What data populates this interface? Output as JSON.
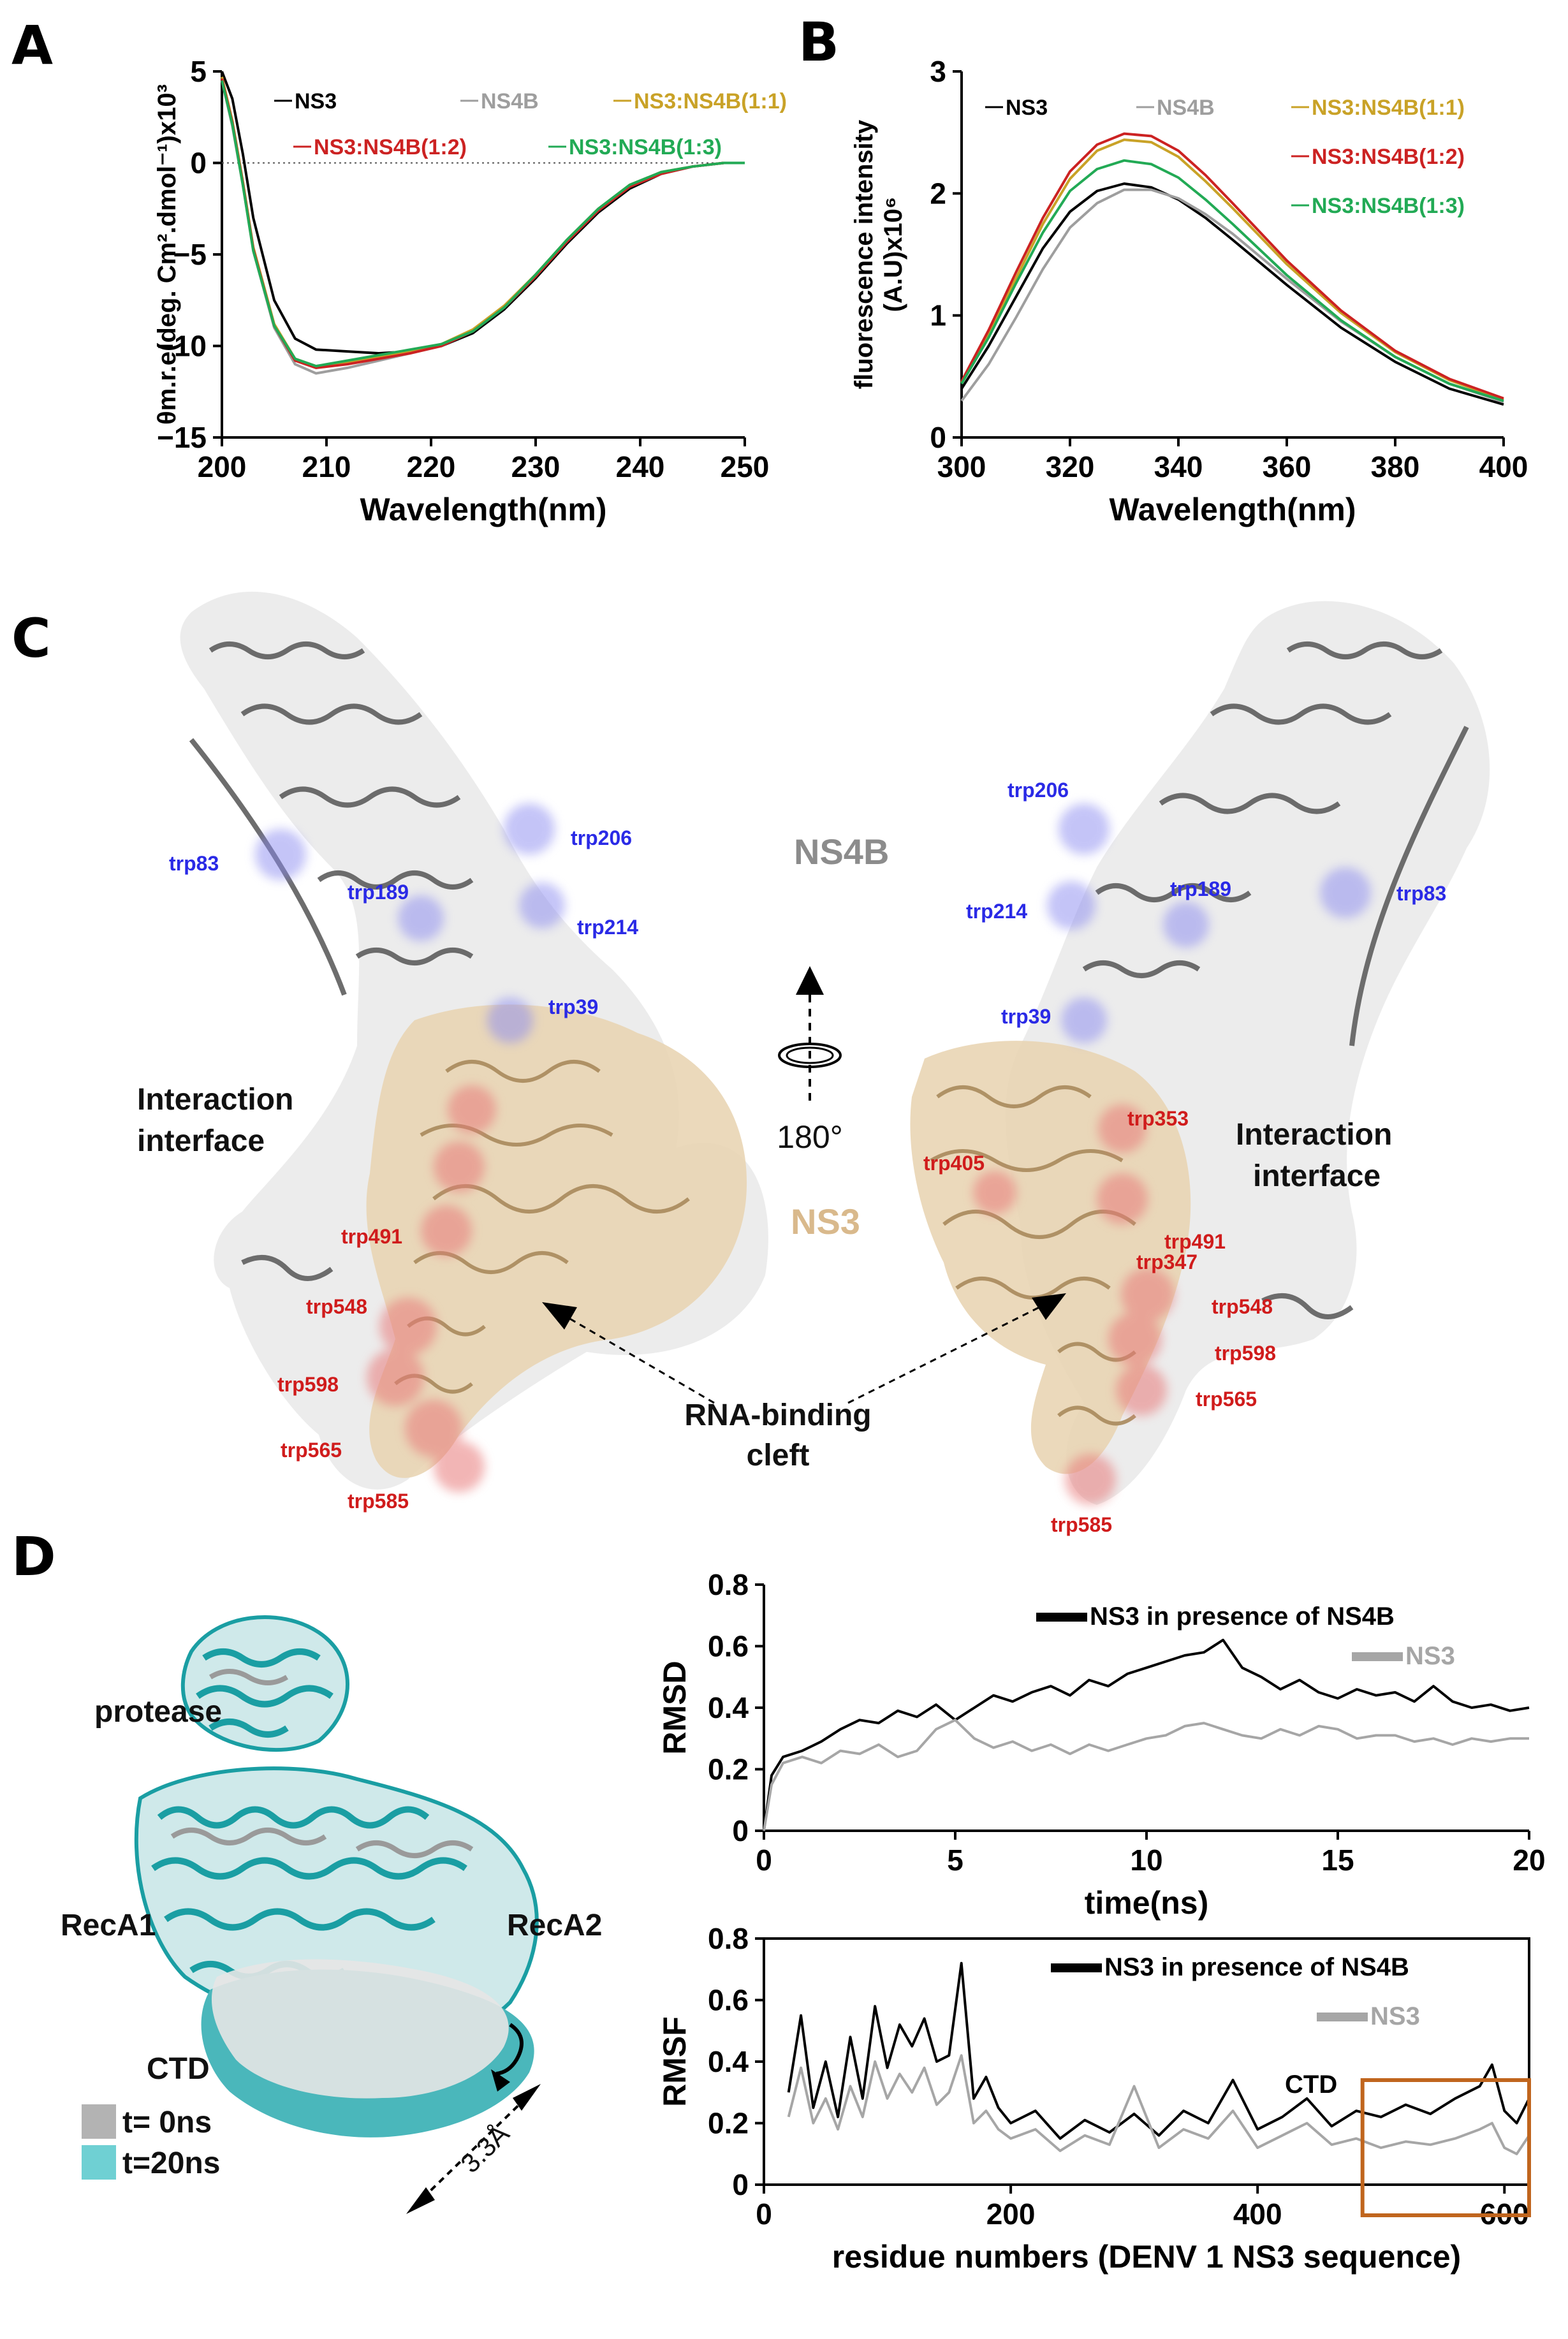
{
  "panels": {
    "A": {
      "letter": "A"
    },
    "B": {
      "letter": "B"
    },
    "C": {
      "letter": "C",
      "ns4b_label": "NS4B",
      "ns3_label": "NS3",
      "interface_left": [
        "Interaction",
        "interface"
      ],
      "interface_right": [
        "Interaction",
        "interface"
      ],
      "rotation_label": "180°",
      "cleft_label": [
        "RNA-binding",
        "cleft"
      ],
      "trp_left_blue": [
        "trp83",
        "trp189",
        "trp206",
        "trp214",
        "trp39"
      ],
      "trp_left_red": [
        "trp491",
        "trp548",
        "trp598",
        "trp565",
        "trp585"
      ],
      "trp_right_blue": [
        "trp206",
        "trp214",
        "trp189",
        "trp83",
        "trp39"
      ],
      "trp_right_red": [
        "trp353",
        "trp405",
        "trp491",
        "trp347",
        "trp548",
        "trp598",
        "trp565",
        "trp585"
      ]
    },
    "D": {
      "letter": "D",
      "labels": {
        "protease": "protease",
        "reca1": "RecA1",
        "reca2": "RecA2",
        "ctd": "CTD",
        "dist": "3.3Å"
      },
      "legend": [
        {
          "label": "t= 0ns",
          "color": "#b3b3b3"
        },
        {
          "label": "t=20ns",
          "color": "#6fd0d3"
        }
      ]
    }
  },
  "colors": {
    "ns3": "#000000",
    "ns4b": "#9e9e9e",
    "ratio11": "#c9a227",
    "ratio12": "#cc2222",
    "ratio13": "#22aa55",
    "trp_blue": "#2a2ae6",
    "trp_red": "#d01c1c",
    "ns3_struct": "#d9b98c",
    "ns4b_struct": "#8c8c8c",
    "teal": "#1a9ea3",
    "ctd_box": "#c0651d"
  },
  "chart_data": [
    {
      "id": "A",
      "type": "line",
      "xlabel": "Wavelength(nm)",
      "ylabel": "θm.r.e(deg. Cm².dmol⁻¹)x10³",
      "xlim": [
        200,
        250
      ],
      "ylim": [
        -15,
        5
      ],
      "xticks": [
        200,
        210,
        220,
        230,
        240,
        250
      ],
      "yticks": [
        5,
        0,
        -5,
        -10,
        -15
      ],
      "ytick_labels": [
        "5",
        "0",
        "−5",
        "−10",
        "−15"
      ],
      "legend": [
        "NS3",
        "NS4B",
        "NS3:NS4B(1:1)",
        "NS3:NS4B(1:2)",
        "NS3:NS4B(1:3)"
      ],
      "x": [
        200,
        201,
        202,
        203,
        205,
        207,
        209,
        212,
        215,
        218,
        221,
        224,
        227,
        230,
        233,
        236,
        239,
        242,
        245,
        248,
        250
      ],
      "series": [
        {
          "name": "NS3",
          "color": "#000000",
          "values": [
            5.0,
            3.5,
            0.5,
            -3.0,
            -7.5,
            -9.6,
            -10.2,
            -10.3,
            -10.4,
            -10.3,
            -10.0,
            -9.3,
            -8.0,
            -6.3,
            -4.4,
            -2.7,
            -1.4,
            -0.6,
            -0.2,
            0.0,
            0.0
          ]
        },
        {
          "name": "NS4B",
          "color": "#9e9e9e",
          "values": [
            4.5,
            2.0,
            -1.2,
            -4.8,
            -9.0,
            -11.0,
            -11.5,
            -11.2,
            -10.8,
            -10.4,
            -10.0,
            -9.2,
            -7.9,
            -6.2,
            -4.3,
            -2.6,
            -1.3,
            -0.6,
            -0.2,
            0.0,
            0.0
          ]
        },
        {
          "name": "NS3:NS4B(1:1)",
          "color": "#c9a227",
          "values": [
            4.7,
            2.3,
            -1.0,
            -4.6,
            -8.8,
            -10.7,
            -11.1,
            -10.9,
            -10.6,
            -10.3,
            -9.9,
            -9.1,
            -7.8,
            -6.1,
            -4.2,
            -2.5,
            -1.2,
            -0.5,
            -0.2,
            0.0,
            0.0
          ]
        },
        {
          "name": "NS3:NS4B(1:2)",
          "color": "#cc2222",
          "values": [
            4.6,
            2.2,
            -1.1,
            -4.7,
            -8.9,
            -10.8,
            -11.2,
            -11.0,
            -10.7,
            -10.4,
            -10.0,
            -9.2,
            -7.9,
            -6.2,
            -4.3,
            -2.6,
            -1.3,
            -0.6,
            -0.2,
            0.0,
            0.0
          ]
        },
        {
          "name": "NS3:NS4B(1:3)",
          "color": "#22aa55",
          "values": [
            4.5,
            2.1,
            -1.2,
            -4.8,
            -8.9,
            -10.7,
            -11.1,
            -10.8,
            -10.5,
            -10.2,
            -9.9,
            -9.2,
            -7.9,
            -6.1,
            -4.2,
            -2.5,
            -1.2,
            -0.5,
            -0.2,
            0.0,
            0.0
          ]
        }
      ]
    },
    {
      "id": "B",
      "type": "line",
      "xlabel": "Wavelength(nm)",
      "ylabel": [
        "fluorescence intensity",
        "(A.U)x10⁶"
      ],
      "xlim": [
        300,
        400
      ],
      "ylim": [
        0,
        3
      ],
      "xticks": [
        300,
        320,
        340,
        360,
        380,
        400
      ],
      "yticks": [
        0,
        1,
        2,
        3
      ],
      "legend": [
        "NS3",
        "NS4B",
        "NS3:NS4B(1:1)",
        "NS3:NS4B(1:2)",
        "NS3:NS4B(1:3)"
      ],
      "x": [
        300,
        305,
        310,
        315,
        320,
        325,
        330,
        335,
        340,
        345,
        350,
        360,
        370,
        380,
        390,
        400
      ],
      "series": [
        {
          "name": "NS3",
          "color": "#000000",
          "values": [
            0.4,
            0.75,
            1.15,
            1.55,
            1.85,
            2.02,
            2.08,
            2.05,
            1.95,
            1.8,
            1.62,
            1.25,
            0.9,
            0.62,
            0.4,
            0.27
          ]
        },
        {
          "name": "NS4B",
          "color": "#9e9e9e",
          "values": [
            0.3,
            0.6,
            0.98,
            1.38,
            1.72,
            1.92,
            2.03,
            2.03,
            1.96,
            1.83,
            1.67,
            1.3,
            0.95,
            0.66,
            0.44,
            0.29
          ]
        },
        {
          "name": "NS3:NS4B(1:1)",
          "color": "#c9a227",
          "values": [
            0.45,
            0.85,
            1.3,
            1.75,
            2.12,
            2.35,
            2.44,
            2.42,
            2.3,
            2.1,
            1.88,
            1.42,
            1.02,
            0.7,
            0.47,
            0.31
          ]
        },
        {
          "name": "NS3:NS4B(1:2)",
          "color": "#cc2222",
          "values": [
            0.46,
            0.88,
            1.35,
            1.8,
            2.18,
            2.4,
            2.49,
            2.47,
            2.35,
            2.15,
            1.92,
            1.45,
            1.04,
            0.71,
            0.48,
            0.32
          ]
        },
        {
          "name": "NS3:NS4B(1:3)",
          "color": "#22aa55",
          "values": [
            0.44,
            0.82,
            1.26,
            1.68,
            2.02,
            2.2,
            2.27,
            2.24,
            2.13,
            1.95,
            1.75,
            1.33,
            0.96,
            0.66,
            0.44,
            0.3
          ]
        }
      ]
    },
    {
      "id": "D-rmsd",
      "type": "line",
      "xlabel": "time(ns)",
      "ylabel": "RMSD",
      "xlim": [
        0,
        20
      ],
      "ylim": [
        0,
        0.8
      ],
      "xticks": [
        0,
        5,
        10,
        15,
        20
      ],
      "yticks": [
        0,
        0.2,
        0.4,
        0.6,
        0.8
      ],
      "ytick_labels": [
        "0",
        "0.2",
        "0.4",
        "0.6",
        "0.8"
      ],
      "legend": [
        "NS3 in presence of NS4B",
        "NS3"
      ],
      "x": [
        0,
        0.2,
        0.5,
        1,
        1.5,
        2,
        2.5,
        3,
        3.5,
        4,
        4.5,
        5,
        5.5,
        6,
        6.5,
        7,
        7.5,
        8,
        8.5,
        9,
        9.5,
        10,
        10.5,
        11,
        11.5,
        12,
        12.5,
        13,
        13.5,
        14,
        14.5,
        15,
        15.5,
        16,
        16.5,
        17,
        17.5,
        18,
        18.5,
        19,
        19.5,
        20
      ],
      "series": [
        {
          "name": "NS3 in presence of NS4B",
          "color": "#000000",
          "values": [
            0.0,
            0.18,
            0.24,
            0.26,
            0.29,
            0.33,
            0.36,
            0.35,
            0.39,
            0.37,
            0.41,
            0.36,
            0.4,
            0.44,
            0.42,
            0.45,
            0.47,
            0.44,
            0.49,
            0.47,
            0.51,
            0.53,
            0.55,
            0.57,
            0.58,
            0.62,
            0.53,
            0.5,
            0.46,
            0.49,
            0.45,
            0.43,
            0.46,
            0.44,
            0.45,
            0.42,
            0.47,
            0.42,
            0.4,
            0.41,
            0.39,
            0.4
          ]
        },
        {
          "name": "NS3",
          "color": "#a6a6a6",
          "values": [
            0.0,
            0.15,
            0.22,
            0.24,
            0.22,
            0.26,
            0.25,
            0.28,
            0.24,
            0.26,
            0.33,
            0.36,
            0.3,
            0.27,
            0.29,
            0.26,
            0.28,
            0.25,
            0.28,
            0.26,
            0.28,
            0.3,
            0.31,
            0.34,
            0.35,
            0.33,
            0.31,
            0.3,
            0.33,
            0.31,
            0.34,
            0.33,
            0.3,
            0.31,
            0.31,
            0.29,
            0.3,
            0.28,
            0.3,
            0.29,
            0.3,
            0.3
          ]
        }
      ]
    },
    {
      "id": "D-rmsf",
      "type": "line",
      "xlabel": "residue numbers (DENV 1 NS3 sequence)",
      "ylabel": "RMSF",
      "xlim": [
        0,
        620
      ],
      "ylim": [
        0,
        0.8
      ],
      "xticks": [
        0,
        200,
        400,
        600
      ],
      "yticks": [
        0,
        0.2,
        0.4,
        0.6,
        0.8
      ],
      "ytick_labels": [
        "0",
        "0.2",
        "0.4",
        "0.6",
        "0.8"
      ],
      "legend": [
        "NS3 in presence of NS4B",
        "NS3"
      ],
      "annotation": {
        "label": "CTD",
        "x_range": [
          485,
          620
        ]
      },
      "x": [
        20,
        30,
        40,
        50,
        60,
        70,
        80,
        90,
        100,
        110,
        120,
        130,
        140,
        150,
        160,
        170,
        180,
        190,
        200,
        220,
        240,
        260,
        280,
        300,
        320,
        340,
        360,
        380,
        400,
        420,
        440,
        460,
        480,
        500,
        520,
        540,
        560,
        580,
        590,
        600,
        610,
        620
      ],
      "series": [
        {
          "name": "NS3 in presence of NS4B",
          "color": "#000000",
          "values": [
            0.3,
            0.55,
            0.25,
            0.4,
            0.22,
            0.48,
            0.28,
            0.58,
            0.38,
            0.52,
            0.45,
            0.54,
            0.4,
            0.42,
            0.72,
            0.28,
            0.35,
            0.25,
            0.2,
            0.24,
            0.15,
            0.21,
            0.17,
            0.23,
            0.16,
            0.24,
            0.2,
            0.34,
            0.18,
            0.22,
            0.28,
            0.19,
            0.24,
            0.22,
            0.26,
            0.23,
            0.28,
            0.32,
            0.39,
            0.24,
            0.2,
            0.28
          ]
        },
        {
          "name": "NS3",
          "color": "#a6a6a6",
          "values": [
            0.22,
            0.38,
            0.2,
            0.28,
            0.18,
            0.32,
            0.22,
            0.4,
            0.28,
            0.36,
            0.3,
            0.38,
            0.26,
            0.3,
            0.42,
            0.2,
            0.24,
            0.18,
            0.15,
            0.18,
            0.11,
            0.16,
            0.13,
            0.32,
            0.12,
            0.18,
            0.15,
            0.24,
            0.12,
            0.16,
            0.2,
            0.13,
            0.15,
            0.12,
            0.14,
            0.13,
            0.15,
            0.18,
            0.2,
            0.12,
            0.1,
            0.16
          ]
        }
      ]
    }
  ]
}
